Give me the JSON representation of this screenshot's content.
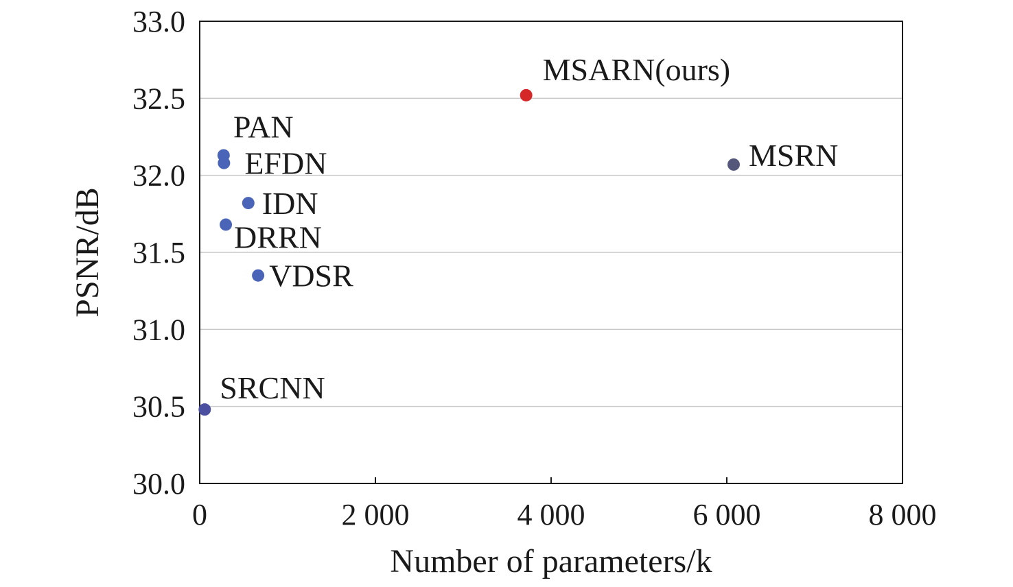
{
  "chart_data": {
    "type": "scatter",
    "xlabel": "Number of parameters/k",
    "ylabel": "PSNR/dB",
    "xlim": [
      0,
      8000
    ],
    "ylim": [
      30.0,
      33.0
    ],
    "x_ticks": [
      {
        "value": 0,
        "label": "0"
      },
      {
        "value": 2000,
        "label": "2 000"
      },
      {
        "value": 4000,
        "label": "4 000"
      },
      {
        "value": 6000,
        "label": "6 000"
      },
      {
        "value": 8000,
        "label": "8 000"
      }
    ],
    "y_ticks": [
      {
        "value": 30.0,
        "label": "30.0"
      },
      {
        "value": 30.5,
        "label": "30.5"
      },
      {
        "value": 31.0,
        "label": "31.0"
      },
      {
        "value": 31.5,
        "label": "31.5"
      },
      {
        "value": 32.0,
        "label": "32.0"
      },
      {
        "value": 32.5,
        "label": "32.5"
      },
      {
        "value": 33.0,
        "label": "33.0"
      }
    ],
    "grid": "horizontal",
    "points": [
      {
        "name": "SRCNN",
        "x": 57,
        "y": 30.48,
        "color": "#4a4fa0"
      },
      {
        "name": "VDSR",
        "x": 665,
        "y": 31.35,
        "color": "#4a64b8"
      },
      {
        "name": "DRRN",
        "x": 297,
        "y": 31.68,
        "color": "#4a64b8"
      },
      {
        "name": "IDN",
        "x": 553,
        "y": 31.82,
        "color": "#4a64b8"
      },
      {
        "name": "EFDN",
        "x": 276,
        "y": 32.08,
        "color": "#4a64b8"
      },
      {
        "name": "PAN",
        "x": 272,
        "y": 32.13,
        "color": "#4a64b8"
      },
      {
        "name": "MSRN",
        "x": 6078,
        "y": 32.07,
        "color": "#55577a"
      },
      {
        "name": "MSARN(ours)",
        "x": 3716,
        "y": 32.52,
        "color": "#d62728"
      }
    ]
  }
}
